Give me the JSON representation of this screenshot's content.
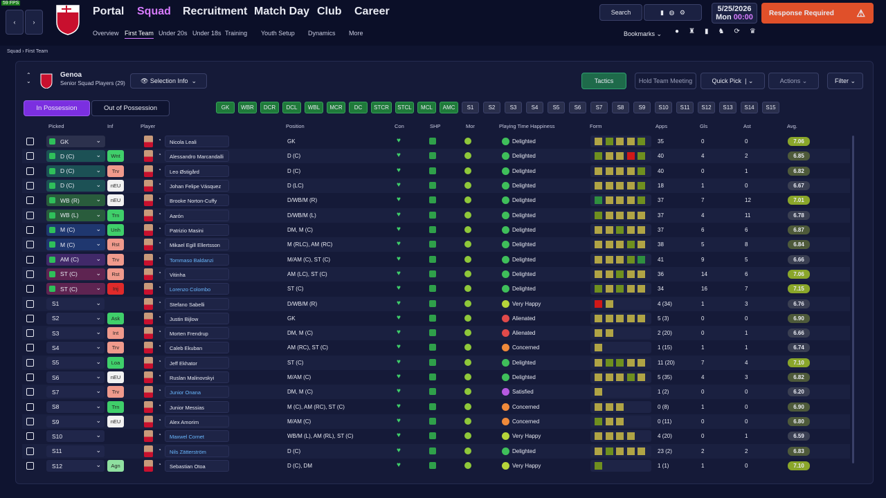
{
  "fps": "59 FPS",
  "nav": {
    "main": [
      "Portal",
      "Squad",
      "Recruitment",
      "Match Day",
      "Club",
      "Career"
    ],
    "sub": [
      "Overview",
      "First Team",
      "Under 20s",
      "Under 18s",
      "Training",
      "Youth Setup",
      "Dynamics",
      "More"
    ]
  },
  "top": {
    "search": "Search",
    "date": "5/25/2026",
    "day": "Mon",
    "time": "00:00",
    "response": "Response Required",
    "bookmarks": "Bookmarks"
  },
  "breadcrumb": [
    "Squad",
    "First Team"
  ],
  "team": {
    "name": "Genoa",
    "subtitle": "Senior Squad Players (29)",
    "selection": "Selection Info"
  },
  "buttons": {
    "tactics": "Tactics",
    "meeting": "Hold Team Meeting",
    "quick_pick": "Quick Pick",
    "actions": "Actions",
    "filter": "Filter"
  },
  "tabs": [
    "In Possession",
    "Out of Possession"
  ],
  "starting_slots": [
    "GK",
    "WBR",
    "DCR",
    "DCL",
    "WBL",
    "MCR",
    "DC",
    "STCR",
    "STCL",
    "MCL",
    "AMC"
  ],
  "sub_slots": [
    "S1",
    "S2",
    "S3",
    "S4",
    "S5",
    "S6",
    "S7",
    "S8",
    "S9",
    "S10",
    "S11",
    "S12",
    "S13",
    "S14",
    "S15"
  ],
  "columns": [
    "Picked",
    "Inf",
    "Player",
    "Position",
    "Con",
    "SHP",
    "Mor",
    "Playing Time Happiness",
    "Form",
    "Apps",
    "Gls",
    "Ast",
    "Avg."
  ],
  "rows": [
    {
      "picked": "GK",
      "pos_color": "#30344e",
      "name": "Nicola Leali",
      "position": "GK",
      "happiness": "Delighted",
      "happiness_color": "#3fbf5a",
      "form": [
        "#b0a445",
        "#6f8f1f",
        "#b0a445",
        "#b0a445",
        "#6f8f1f"
      ],
      "apps": 35,
      "gls": 0,
      "ast": 0,
      "avg": "7.06"
    },
    {
      "picked": "D (C)",
      "pos_color": "#1c5c58",
      "inf": "Wnt",
      "inf_color": "#3fcf6a",
      "name": "Alessandro Marcandalli",
      "position": "D (C)",
      "happiness": "Delighted",
      "happiness_color": "#3fbf5a",
      "form": [
        "#6f8f1f",
        "#b0a445",
        "#b0a445",
        "#d01818",
        "#6f8f1f"
      ],
      "apps": 40,
      "gls": 4,
      "ast": 2,
      "avg": "6.85"
    },
    {
      "picked": "D (C)",
      "pos_color": "#1c5c58",
      "inf": "Trv",
      "inf_color": "#f09a8c",
      "name": "Leo Østigård",
      "position": "D (C)",
      "happiness": "Delighted",
      "happiness_color": "#3fbf5a",
      "form": [
        "#b0a445",
        "#b0a445",
        "#b0a445",
        "#b0a445",
        "#6f8f1f"
      ],
      "apps": 40,
      "gls": 0,
      "ast": 1,
      "avg": "6.82"
    },
    {
      "picked": "D (C)",
      "pos_color": "#1c5c58",
      "inf": "nEU",
      "inf_color": "#f2f2f2",
      "name": "Johan Felipe Vásquez",
      "position": "D (LC)",
      "happiness": "Delighted",
      "happiness_color": "#3fbf5a",
      "form": [
        "#b0a445",
        "#b0a445",
        "#b0a445",
        "#b0a445",
        "#6f8f1f"
      ],
      "apps": 18,
      "gls": 1,
      "ast": 0,
      "avg": "6.67"
    },
    {
      "picked": "WB (R)",
      "pos_color": "#2c6a38",
      "inf": "nEU",
      "inf_color": "#f2f2f2",
      "name": "Brooke Norton-Cuffy",
      "position": "D/WB/M (R)",
      "happiness": "Delighted",
      "happiness_color": "#3fbf5a",
      "form": [
        "#2f8f3f",
        "#b0a445",
        "#b0a445",
        "#b0a445",
        "#6f8f1f"
      ],
      "apps": 37,
      "gls": 7,
      "ast": 12,
      "avg": "7.01"
    },
    {
      "picked": "WB (L)",
      "pos_color": "#2c6a38",
      "inf": "Trn",
      "inf_color": "#3fcf6a",
      "name": "Aarón",
      "position": "D/WB/M (L)",
      "happiness": "Delighted",
      "happiness_color": "#3fbf5a",
      "form": [
        "#6f8f1f",
        "#b0a445",
        "#b0a445",
        "#b0a445",
        "#b0a445"
      ],
      "apps": 37,
      "gls": 4,
      "ast": 11,
      "avg": "6.78"
    },
    {
      "picked": "M (C)",
      "pos_color": "#1f3c78",
      "inf": "Unh",
      "inf_color": "#3fcf6a",
      "name": "Patrizio Masini",
      "position": "DM, M (C)",
      "happiness": "Delighted",
      "happiness_color": "#3fbf5a",
      "form": [
        "#b0a445",
        "#b0a445",
        "#6f8f1f",
        "#b0a445",
        "#b0a445"
      ],
      "apps": 37,
      "gls": 6,
      "ast": 6,
      "avg": "6.87"
    },
    {
      "picked": "M (C)",
      "pos_color": "#1f3c78",
      "inf": "Rst",
      "inf_color": "#f09a8c",
      "name": "Mikael Egill Ellertsson",
      "position": "M (RLC), AM (RC)",
      "happiness": "Delighted",
      "happiness_color": "#3fbf5a",
      "form": [
        "#b0a445",
        "#b0a445",
        "#b0a445",
        "#6f8f1f",
        "#b0a445"
      ],
      "apps": 38,
      "gls": 5,
      "ast": 8,
      "avg": "6.84"
    },
    {
      "picked": "AM (C)",
      "pos_color": "#4a2a70",
      "inf": "Trv",
      "inf_color": "#f09a8c",
      "name": "Tommaso Baldanzi",
      "name_color": "#6ab8ff",
      "position": "M/AM (C), ST (C)",
      "happiness": "Delighted",
      "happiness_color": "#3fbf5a",
      "form": [
        "#b0a445",
        "#b0a445",
        "#b0a445",
        "#6f8f1f",
        "#2f8f3f"
      ],
      "apps": 41,
      "gls": 9,
      "ast": 5,
      "avg": "6.66"
    },
    {
      "picked": "ST (C)",
      "pos_color": "#6e2452",
      "inf": "Rst",
      "inf_color": "#f09a8c",
      "name": "Vitinha",
      "position": "AM (LC), ST (C)",
      "happiness": "Delighted",
      "happiness_color": "#3fbf5a",
      "form": [
        "#b0a445",
        "#b0a445",
        "#6f8f1f",
        "#b0a445",
        "#b0a445"
      ],
      "apps": 36,
      "gls": 14,
      "ast": 6,
      "avg": "7.06"
    },
    {
      "picked": "ST (C)",
      "pos_color": "#6e2452",
      "inf": "Inj",
      "inf_color": "#e02a2a",
      "name": "Lorenzo Colombo",
      "name_color": "#6ab8ff",
      "position": "ST (C)",
      "happiness": "Delighted",
      "happiness_color": "#3fbf5a",
      "form": [
        "#6f8f1f",
        "#b0a445",
        "#6f8f1f",
        "#b0a445",
        "#b0a445"
      ],
      "apps": 34,
      "gls": 16,
      "ast": 7,
      "avg": "7.15"
    },
    {
      "picked": "S1",
      "name": "Stefano Sabelli",
      "position": "D/WB/M (R)",
      "happiness": "Very Happy",
      "happiness_color": "#b6d43a",
      "form": [
        "#d01818",
        "#b0a445"
      ],
      "apps": "4 (34)",
      "gls": 1,
      "ast": 3,
      "avg": "6.76"
    },
    {
      "picked": "S2",
      "inf": "Ask",
      "inf_color": "#3fcf6a",
      "name": "Justin Bijlow",
      "position": "GK",
      "happiness": "Alienated",
      "happiness_color": "#e04a4a",
      "form": [
        "#b0a445",
        "#b0a445",
        "#b0a445",
        "#b0a445",
        "#b0a445"
      ],
      "apps": "5 (3)",
      "gls": 0,
      "ast": 0,
      "avg": "6.90"
    },
    {
      "picked": "S3",
      "inf": "Int",
      "inf_color": "#f09a8c",
      "name": "Morten Frendrup",
      "position": "DM, M (C)",
      "happiness": "Alienated",
      "happiness_color": "#e04a4a",
      "form": [
        "#b0a445",
        "#b0a445"
      ],
      "apps": "2 (20)",
      "gls": 0,
      "ast": 1,
      "avg": "6.66"
    },
    {
      "picked": "S4",
      "inf": "Trv",
      "inf_color": "#f09a8c",
      "name": "Caleb Ekuban",
      "position": "AM (RC), ST (C)",
      "happiness": "Concerned",
      "happiness_color": "#f08a3a",
      "form": [
        "#b0a445"
      ],
      "apps": "1 (15)",
      "gls": 1,
      "ast": 1,
      "avg": "6.74"
    },
    {
      "picked": "S5",
      "inf": "Loa",
      "inf_color": "#3fcf6a",
      "name": "Jeff Ekhator",
      "position": "ST (C)",
      "happiness": "Delighted",
      "happiness_color": "#3fbf5a",
      "form": [
        "#b0a445",
        "#6f8f1f",
        "#6f8f1f",
        "#b0a445",
        "#b0a445"
      ],
      "apps": "11 (20)",
      "gls": 7,
      "ast": 4,
      "avg": "7.10"
    },
    {
      "picked": "S6",
      "inf": "nEU",
      "inf_color": "#f2f2f2",
      "name": "Ruslan Malinovskyi",
      "position": "M/AM (C)",
      "happiness": "Delighted",
      "happiness_color": "#3fbf5a",
      "form": [
        "#b0a445",
        "#b0a445",
        "#b0a445",
        "#6f8f1f",
        "#b0a445"
      ],
      "apps": "5 (35)",
      "gls": 4,
      "ast": 3,
      "avg": "6.82"
    },
    {
      "picked": "S7",
      "inf": "Trv",
      "inf_color": "#f09a8c",
      "name": "Junior Onana",
      "name_color": "#6ab8ff",
      "position": "DM, M (C)",
      "happiness": "Satisfied",
      "happiness_color": "#b65ae0",
      "form": [
        "#b0a445"
      ],
      "apps": "1 (2)",
      "gls": 0,
      "ast": 0,
      "avg": "6.20"
    },
    {
      "picked": "S8",
      "inf": "Trn",
      "inf_color": "#3fcf6a",
      "name": "Junior Messias",
      "position": "M (C), AM (RC), ST (C)",
      "happiness": "Concerned",
      "happiness_color": "#f08a3a",
      "form": [
        "#b0a445",
        "#b0a445",
        "#b0a445"
      ],
      "apps": "0 (8)",
      "gls": 1,
      "ast": 0,
      "avg": "6.90"
    },
    {
      "picked": "S9",
      "inf": "nEU",
      "inf_color": "#f2f2f2",
      "name": "Alex Amorim",
      "position": "M/AM (C)",
      "happiness": "Concerned",
      "happiness_color": "#f08a3a",
      "form": [
        "#6f8f1f",
        "#b0a445",
        "#b0a445"
      ],
      "apps": "0 (11)",
      "gls": 0,
      "ast": 0,
      "avg": "6.80"
    },
    {
      "picked": "S10",
      "name": "Maxwel Cornet",
      "name_color": "#6ab8ff",
      "position": "WB/M (L), AM (RL), ST (C)",
      "happiness": "Very Happy",
      "happiness_color": "#b6d43a",
      "form": [
        "#b0a445",
        "#b0a445",
        "#b0a445",
        "#b0a445"
      ],
      "apps": "4 (20)",
      "gls": 0,
      "ast": 1,
      "avg": "6.59"
    },
    {
      "picked": "S11",
      "name": "Nils Zätterström",
      "name_color": "#6ab8ff",
      "position": "D (C)",
      "happiness": "Delighted",
      "happiness_color": "#3fbf5a",
      "form": [
        "#b0a445",
        "#6f8f1f",
        "#b0a445",
        "#b0a445",
        "#b0a445"
      ],
      "apps": "23 (2)",
      "gls": 2,
      "ast": 2,
      "avg": "6.83"
    },
    {
      "picked": "S12",
      "inf": "Agn",
      "inf_color": "#8fe0a0",
      "name": "Sebastian Otoa",
      "position": "D (C), DM",
      "happiness": "Very Happy",
      "happiness_color": "#b6d43a",
      "form": [
        "#6f8f1f"
      ],
      "apps": "1 (1)",
      "gls": 1,
      "ast": 0,
      "avg": "7.10"
    }
  ]
}
